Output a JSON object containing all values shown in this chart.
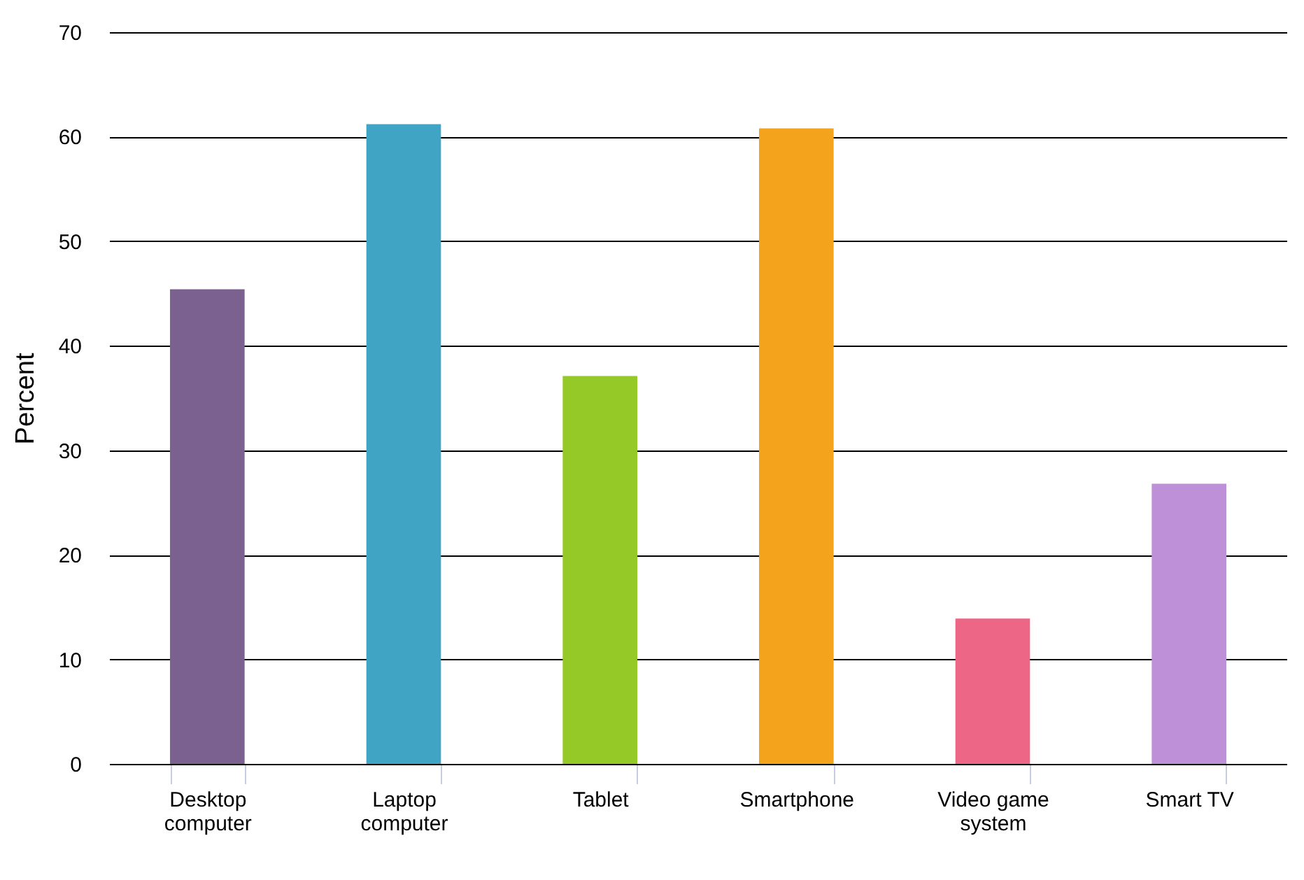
{
  "chart_data": {
    "type": "bar",
    "ylabel": "Percent",
    "categories": [
      "Desktop computer",
      "Laptop computer",
      "Tablet",
      "Smartphone",
      "Video game system",
      "Smart TV"
    ],
    "values": [
      45.4,
      61.2,
      37.1,
      60.8,
      13.9,
      26.8
    ],
    "colors": [
      "#7b6190",
      "#40a4c4",
      "#94c928",
      "#f4a41c",
      "#ee6686",
      "#be90d8"
    ],
    "ylim": [
      0,
      70
    ],
    "yticks": [
      0,
      10,
      20,
      30,
      40,
      50,
      60,
      70
    ],
    "grid": "y"
  }
}
